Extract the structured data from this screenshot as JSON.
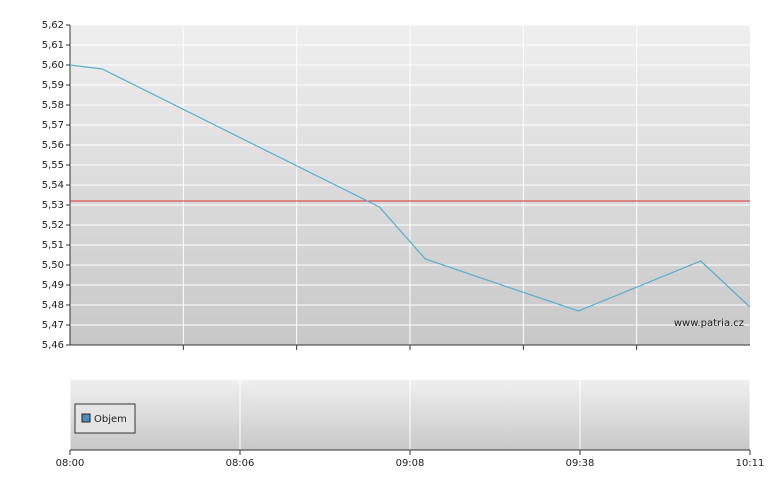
{
  "chart_data": [
    {
      "type": "line",
      "x": [
        0,
        0.19,
        1.82,
        2.09,
        2.99,
        3.71,
        4
      ],
      "series": [
        {
          "color": "#5aaed0",
          "values": [
            5.6,
            5.598,
            5.529,
            5.503,
            5.477,
            5.502,
            5.479
          ]
        }
      ],
      "reference_line": {
        "value": 5.532,
        "color": "#e03030"
      },
      "annotation": "www.patria.cz",
      "xlim": [
        0,
        4
      ],
      "ylim": [
        5.46,
        5.62
      ],
      "yticks": [
        {
          "value": 5.46,
          "label": "5,46"
        },
        {
          "value": 5.47,
          "label": "5,47"
        },
        {
          "value": 5.48,
          "label": "5,48"
        },
        {
          "value": 5.49,
          "label": "5,49"
        },
        {
          "value": 5.5,
          "label": "5,50"
        },
        {
          "value": 5.51,
          "label": "5,51"
        },
        {
          "value": 5.52,
          "label": "5,52"
        },
        {
          "value": 5.53,
          "label": "5,53"
        },
        {
          "value": 5.54,
          "label": "5,54"
        },
        {
          "value": 5.55,
          "label": "5,55"
        },
        {
          "value": 5.56,
          "label": "5,56"
        },
        {
          "value": 5.57,
          "label": "5,57"
        },
        {
          "value": 5.58,
          "label": "5,58"
        },
        {
          "value": 5.59,
          "label": "5,59"
        },
        {
          "value": 5.6,
          "label": "5,60"
        },
        {
          "value": 5.61,
          "label": "5,61"
        },
        {
          "value": 5.62,
          "label": "5,62"
        }
      ],
      "grid": true
    },
    {
      "type": "bar",
      "series": [
        {
          "name": "Objem",
          "color": "#4f8fc0"
        }
      ],
      "xlim": [
        0,
        4
      ],
      "xticks": [
        {
          "value": 0,
          "label": "08:00"
        },
        {
          "value": 1,
          "label": "08:06"
        },
        {
          "value": 2,
          "label": "09:08"
        },
        {
          "value": 3,
          "label": "09:38"
        },
        {
          "value": 4,
          "label": "10:11"
        }
      ],
      "grid": true
    }
  ]
}
